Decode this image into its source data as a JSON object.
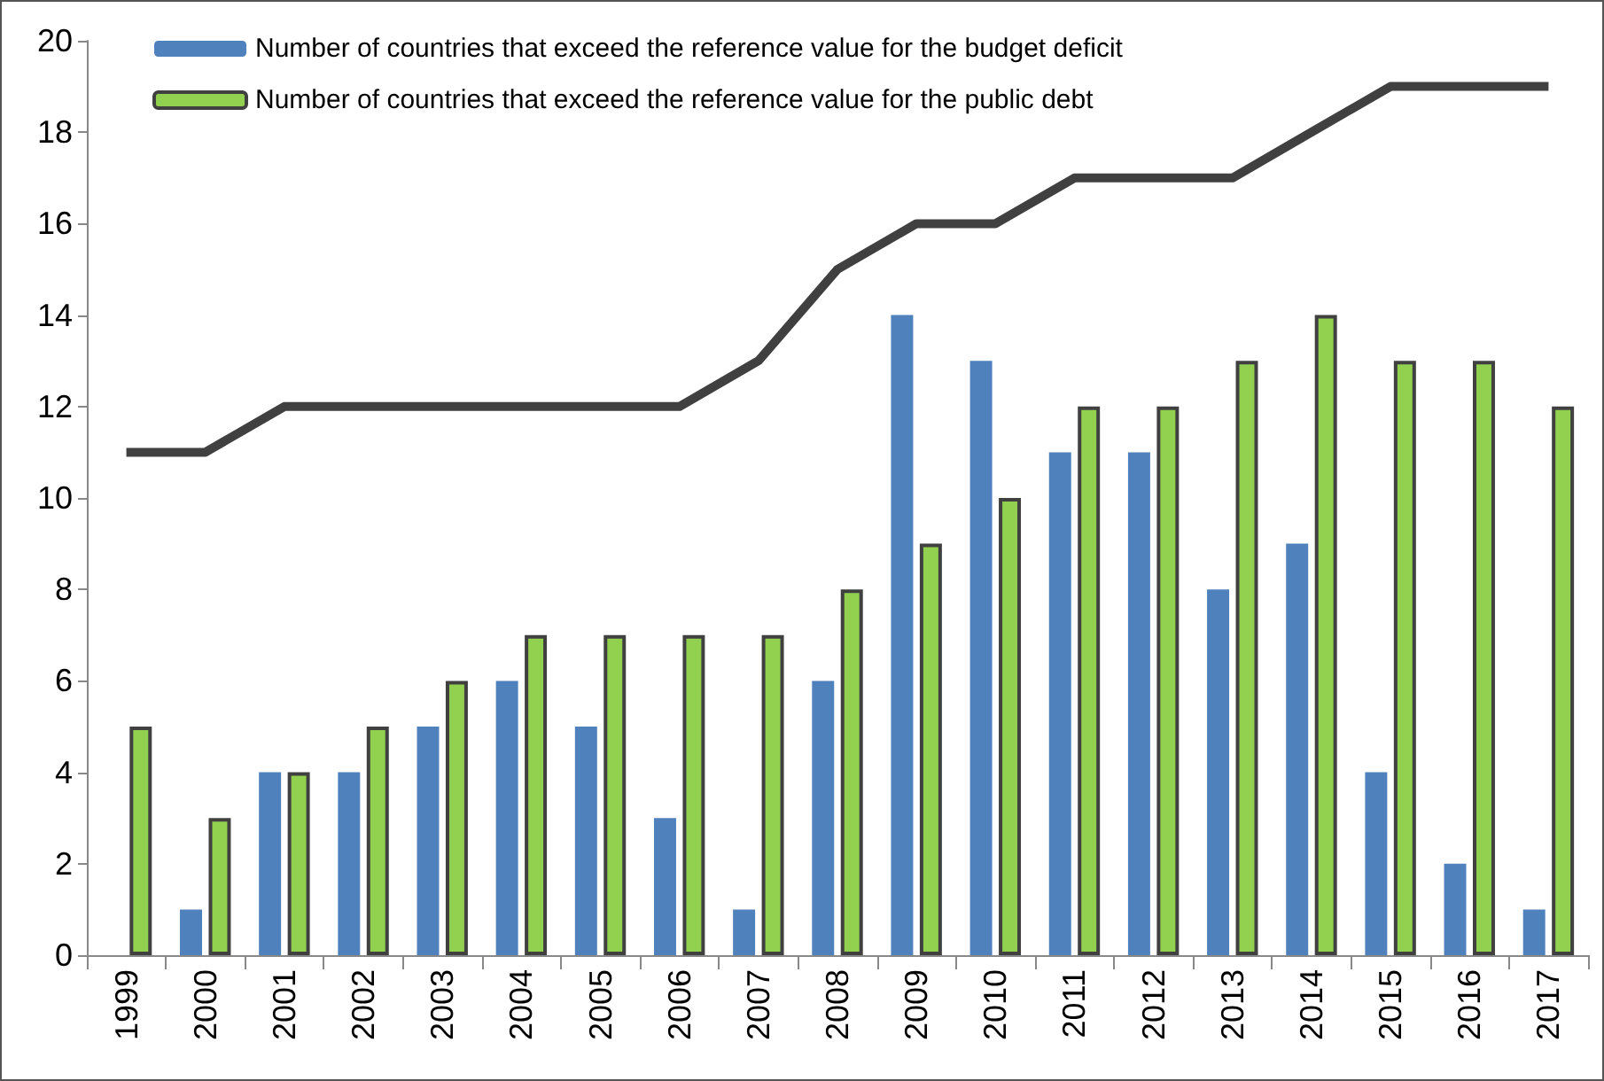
{
  "chart_data": {
    "type": "bar",
    "categories": [
      "1999",
      "2000",
      "2001",
      "2002",
      "2003",
      "2004",
      "2005",
      "2006",
      "2007",
      "2008",
      "2009",
      "2010",
      "2011",
      "2012",
      "2013",
      "2014",
      "2015",
      "2016",
      "2017"
    ],
    "series": [
      {
        "name": "Number of countries that exceed the reference value for the budget deficit",
        "color": "#4f81bd",
        "values": [
          0,
          1,
          4,
          4,
          5,
          6,
          5,
          3,
          1,
          6,
          14,
          13,
          11,
          11,
          8,
          9,
          4,
          2,
          1
        ]
      },
      {
        "name": "Number of countries that exceed the reference value for the public debt",
        "color": "#92d050",
        "values": [
          5,
          3,
          4,
          5,
          6,
          7,
          7,
          7,
          7,
          8,
          9,
          10,
          12,
          12,
          13,
          14,
          13,
          13,
          12
        ]
      },
      {
        "type": "line",
        "color": "#404040",
        "values": [
          11,
          11,
          12,
          12,
          12,
          12,
          12,
          12,
          13,
          15,
          16,
          16,
          17,
          17,
          17,
          18,
          19,
          19,
          19
        ]
      }
    ],
    "ylim": [
      0,
      20
    ],
    "yticks": [
      0,
      2,
      4,
      6,
      8,
      10,
      12,
      14,
      16,
      18,
      20
    ],
    "grid": false,
    "legend": "top left",
    "marker": "none"
  }
}
